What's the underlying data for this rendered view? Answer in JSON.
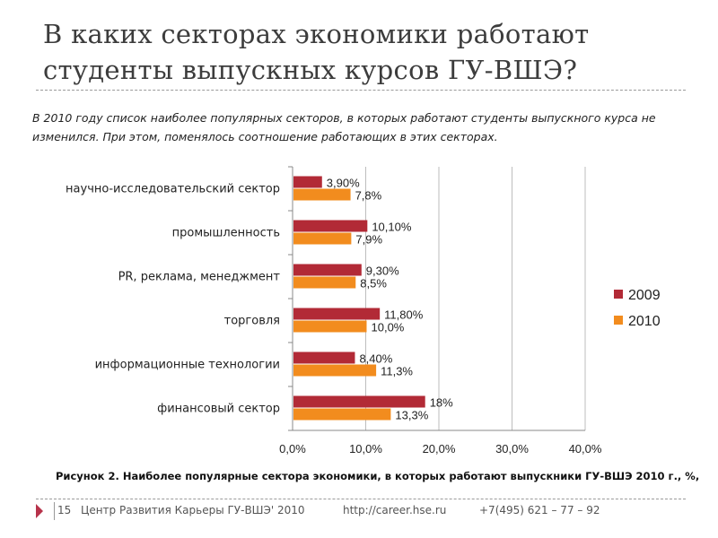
{
  "header": {
    "title_line1": "В каких секторах экономики работают",
    "title_line2": "студенты выпускных курсов ГУ-ВШЭ?"
  },
  "intro": {
    "text": "В 2010 году список наиболее популярных секторов, в которых работают студенты выпускного курса не изменился. При этом, поменялось соотношение работающих в этих секторах."
  },
  "chart_data": {
    "type": "bar",
    "orientation": "horizontal",
    "categories": [
      "научно-исследовательский сектор",
      "промышленность",
      "PR, реклама, менеджмент",
      "торговля",
      "информационные технологии",
      "финансовый сектор"
    ],
    "series": [
      {
        "name": "2009",
        "color": "#b22a36",
        "values": [
          3.9,
          10.1,
          9.3,
          11.8,
          8.4,
          18
        ],
        "labels": [
          "3,90%",
          "10,10%",
          "9,30%",
          "11,80%",
          "8,40%",
          "18%"
        ]
      },
      {
        "name": "2010",
        "color": "#f28c1e",
        "values": [
          7.8,
          7.9,
          8.5,
          10.0,
          11.3,
          13.3
        ],
        "labels": [
          "7,8%",
          "7,9%",
          "8,5%",
          "10,0%",
          "11,3%",
          "13,3%"
        ]
      }
    ],
    "xlim": [
      0,
      40
    ],
    "xticks": [
      "0,0%",
      "10,0%",
      "20,0%",
      "30,0%",
      "40,0%"
    ],
    "xtick_values": [
      0,
      10,
      20,
      30,
      40
    ],
    "grid": true,
    "legend_position": "right"
  },
  "caption": {
    "text": "Рисунок 2. Наиболее популярные сектора экономики, в которых работают выпускники ГУ-ВШЭ 2010 г., %,"
  },
  "footer": {
    "slide_number": "15",
    "org": "Центр Развития Карьеры ГУ-ВШЭ' 2010",
    "url": "http://career.hse.ru",
    "phone": "+7(495) 621 – 77 – 92"
  }
}
